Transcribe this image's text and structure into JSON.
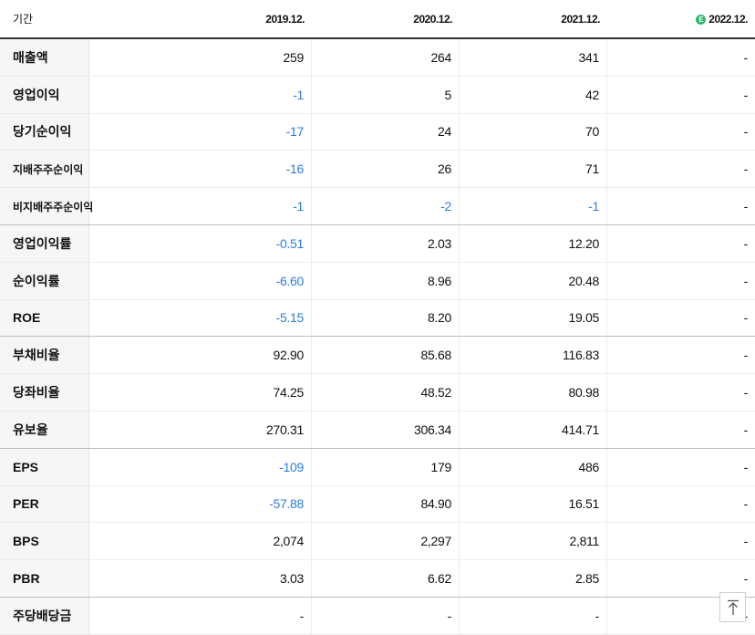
{
  "header": {
    "label": "기간",
    "periods": [
      "2019.12.",
      "2020.12.",
      "2021.12.",
      "2022.12."
    ],
    "estimate_icon_glyph": "E"
  },
  "rows": [
    {
      "label": "매출액",
      "values": [
        "259",
        "264",
        "341",
        "-"
      ]
    },
    {
      "label": "영업이익",
      "values": [
        "-1",
        "5",
        "42",
        "-"
      ]
    },
    {
      "label": "당기순이익",
      "values": [
        "-17",
        "24",
        "70",
        "-"
      ]
    },
    {
      "label": "지배주주순이익",
      "values": [
        "-16",
        "26",
        "71",
        "-"
      ]
    },
    {
      "label": "비지배주주순이익",
      "values": [
        "-1",
        "-2",
        "-1",
        "-"
      ]
    },
    {
      "label": "영업이익률",
      "values": [
        "-0.51",
        "2.03",
        "12.20",
        "-"
      ]
    },
    {
      "label": "순이익률",
      "values": [
        "-6.60",
        "8.96",
        "20.48",
        "-"
      ]
    },
    {
      "label": "ROE",
      "values": [
        "-5.15",
        "8.20",
        "19.05",
        "-"
      ]
    },
    {
      "label": "부채비율",
      "values": [
        "92.90",
        "85.68",
        "116.83",
        "-"
      ]
    },
    {
      "label": "당좌비율",
      "values": [
        "74.25",
        "48.52",
        "80.98",
        "-"
      ]
    },
    {
      "label": "유보율",
      "values": [
        "270.31",
        "306.34",
        "414.71",
        "-"
      ]
    },
    {
      "label": "EPS",
      "values": [
        "-109",
        "179",
        "486",
        "-"
      ]
    },
    {
      "label": "PER",
      "values": [
        "-57.88",
        "84.90",
        "16.51",
        "-"
      ]
    },
    {
      "label": "BPS",
      "values": [
        "2,074",
        "2,297",
        "2,811",
        "-"
      ]
    },
    {
      "label": "PBR",
      "values": [
        "3.03",
        "6.62",
        "2.85",
        "-"
      ]
    },
    {
      "label": "주당배당금",
      "values": [
        "-",
        "-",
        "-",
        "-"
      ]
    }
  ],
  "colors": {
    "negative": "#2a7de1",
    "estimate_badge": "#2eb86b"
  },
  "icons": {
    "estimate": "estimate-icon",
    "scroll_top": "arrow-up-icon"
  }
}
